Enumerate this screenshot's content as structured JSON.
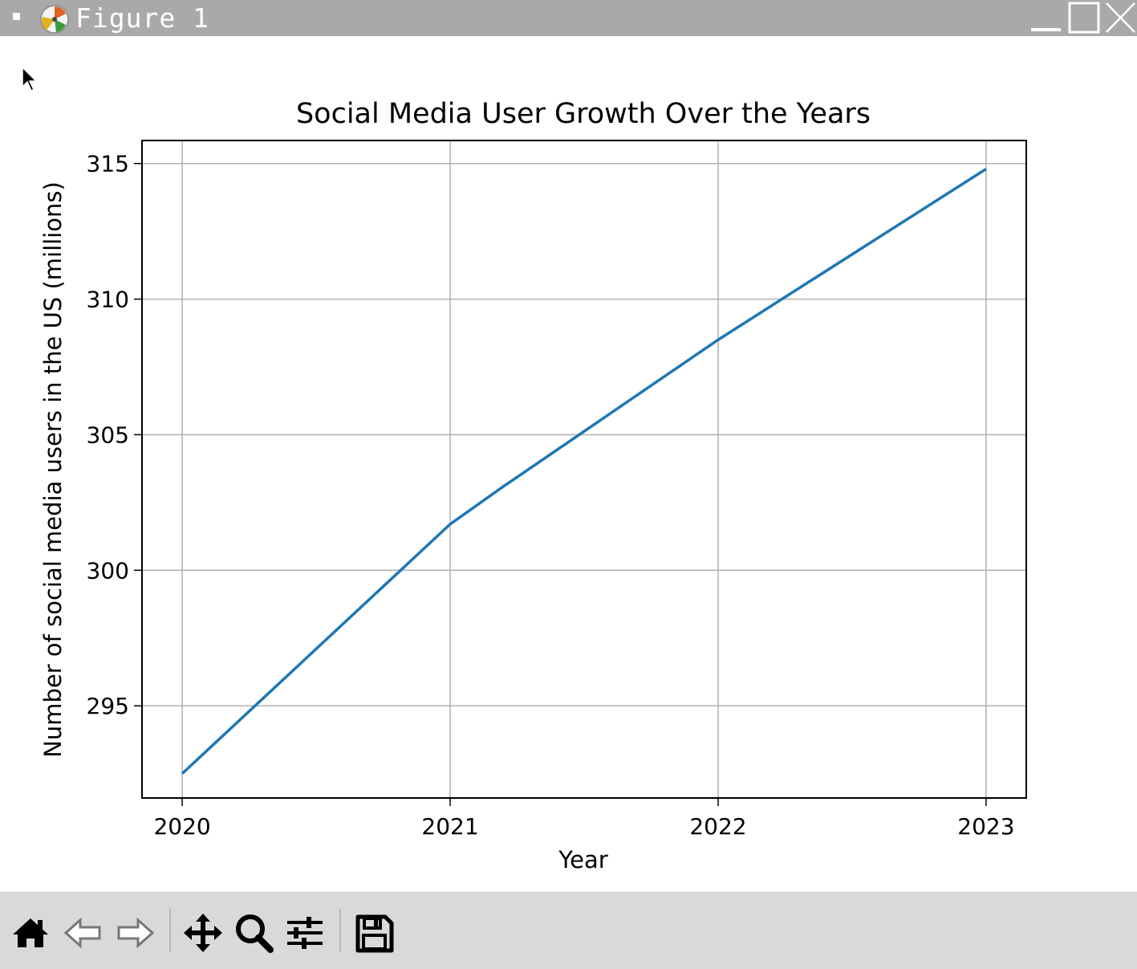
{
  "window": {
    "title": "Figure 1",
    "icons": [
      "window-menu-icon",
      "app-icon",
      "minimize-icon",
      "maximize-icon",
      "close-icon"
    ]
  },
  "toolbar": {
    "buttons": [
      "home-icon",
      "back-arrow-icon",
      "forward-arrow-icon",
      "pan-move-icon",
      "zoom-magnifier-icon",
      "configure-subplots-icon",
      "save-floppy-icon"
    ]
  },
  "chart_data": {
    "type": "line",
    "title": "Social Media User Growth Over the Years",
    "xlabel": "Year",
    "ylabel": "Number of social media users in the US (millions)",
    "x": [
      2020,
      2021,
      2021.2,
      2022,
      2023
    ],
    "series": [
      {
        "values": [
          292.5,
          301.7,
          303.1,
          308.5,
          314.8
        ],
        "color": "#1f77b4"
      }
    ],
    "xticks": [
      "2020",
      "2021",
      "2022",
      "2023"
    ],
    "yticks": [
      "295",
      "300",
      "305",
      "310",
      "315"
    ],
    "xlim": [
      2019.85,
      2023.15
    ],
    "ylim": [
      291.6,
      315.85
    ],
    "grid": true,
    "grid_color": "#b0b0b0"
  }
}
